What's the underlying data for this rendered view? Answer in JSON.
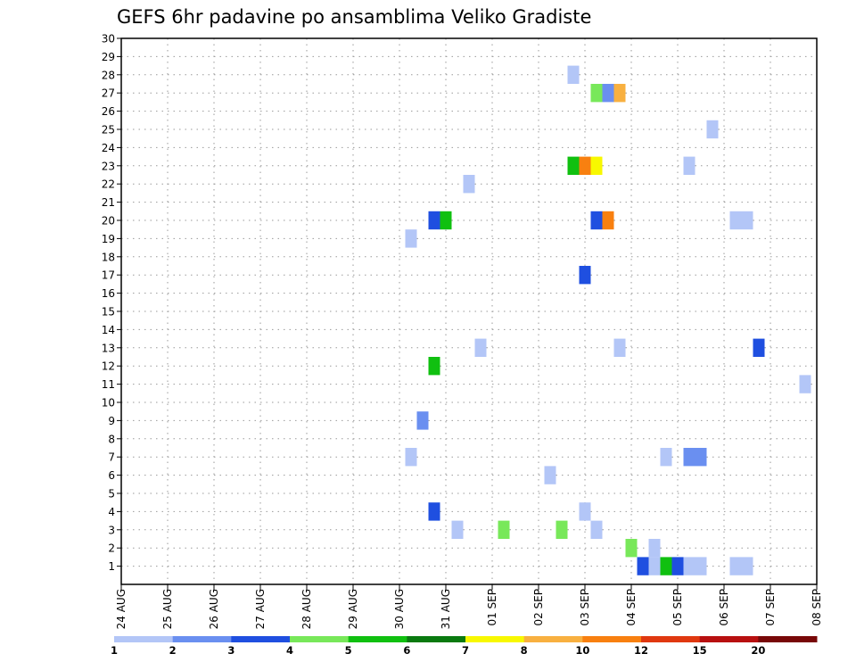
{
  "chart_data": {
    "type": "heatmap",
    "title": "GEFS 6hr padavine po ansamblima Veliko Gradiste",
    "xlabel": "",
    "ylabel": "",
    "x_tick_labels": [
      "24 AUG",
      "25 AUG",
      "26 AUG",
      "27 AUG",
      "28 AUG",
      "29 AUG",
      "30 AUG",
      "31 AUG",
      "01 SEP",
      "02 SEP",
      "03 SEP",
      "04 SEP",
      "05 SEP",
      "06 SEP",
      "07 SEP",
      "08 SEP"
    ],
    "y_tick_labels": [
      "1",
      "2",
      "3",
      "4",
      "5",
      "6",
      "7",
      "8",
      "9",
      "10",
      "11",
      "12",
      "13",
      "14",
      "15",
      "16",
      "17",
      "18",
      "19",
      "20",
      "21",
      "22",
      "23",
      "24",
      "25",
      "26",
      "27",
      "28",
      "29",
      "30"
    ],
    "xlim_days": [
      0,
      15
    ],
    "ylim": [
      0,
      30
    ],
    "grid": true,
    "x_step_hours": 6,
    "legend": {
      "placement": "bottom",
      "labels": [
        "1",
        "2",
        "3",
        "4",
        "5",
        "6",
        "7",
        "8",
        "10",
        "12",
        "15",
        "20"
      ],
      "colors": [
        "#b3c6f7",
        "#6a8ff0",
        "#1f4fe0",
        "#78e85a",
        "#10c010",
        "#0a7a10",
        "#f8f800",
        "#f8b040",
        "#f88010",
        "#e03810",
        "#b81010",
        "#780808"
      ]
    },
    "cells": [
      {
        "member": 28,
        "day": 9.75,
        "color": "#b3c6f7"
      },
      {
        "member": 27,
        "day": 10.25,
        "color": "#78e85a"
      },
      {
        "member": 27,
        "day": 10.5,
        "color": "#6a8ff0"
      },
      {
        "member": 27,
        "day": 10.75,
        "color": "#f8b040"
      },
      {
        "member": 25,
        "day": 12.75,
        "color": "#b3c6f7"
      },
      {
        "member": 23,
        "day": 9.75,
        "color": "#10c010"
      },
      {
        "member": 23,
        "day": 10.0,
        "color": "#f88010"
      },
      {
        "member": 23,
        "day": 10.25,
        "color": "#f8f800"
      },
      {
        "member": 23,
        "day": 12.25,
        "color": "#b3c6f7"
      },
      {
        "member": 22,
        "day": 7.5,
        "color": "#b3c6f7"
      },
      {
        "member": 20,
        "day": 6.75,
        "color": "#1f4fe0"
      },
      {
        "member": 20,
        "day": 7.0,
        "color": "#10c010"
      },
      {
        "member": 20,
        "day": 10.25,
        "color": "#1f4fe0"
      },
      {
        "member": 20,
        "day": 10.5,
        "color": "#f88010"
      },
      {
        "member": 20,
        "day": 13.25,
        "color": "#b3c6f7"
      },
      {
        "member": 20,
        "day": 13.5,
        "color": "#b3c6f7"
      },
      {
        "member": 19,
        "day": 6.25,
        "color": "#b3c6f7"
      },
      {
        "member": 17,
        "day": 10.0,
        "color": "#1f4fe0"
      },
      {
        "member": 13,
        "day": 7.75,
        "color": "#b3c6f7"
      },
      {
        "member": 13,
        "day": 10.75,
        "color": "#b3c6f7"
      },
      {
        "member": 13,
        "day": 13.75,
        "color": "#1f4fe0"
      },
      {
        "member": 12,
        "day": 6.75,
        "color": "#10c010"
      },
      {
        "member": 11,
        "day": 14.75,
        "color": "#b3c6f7"
      },
      {
        "member": 9,
        "day": 6.5,
        "color": "#6a8ff0"
      },
      {
        "member": 7,
        "day": 6.25,
        "color": "#b3c6f7"
      },
      {
        "member": 7,
        "day": 11.75,
        "color": "#b3c6f7"
      },
      {
        "member": 7,
        "day": 12.25,
        "color": "#6a8ff0"
      },
      {
        "member": 7,
        "day": 12.5,
        "color": "#6a8ff0"
      },
      {
        "member": 6,
        "day": 9.25,
        "color": "#b3c6f7"
      },
      {
        "member": 4,
        "day": 6.75,
        "color": "#1f4fe0"
      },
      {
        "member": 4,
        "day": 10.0,
        "color": "#b3c6f7"
      },
      {
        "member": 3,
        "day": 7.25,
        "color": "#b3c6f7"
      },
      {
        "member": 3,
        "day": 8.25,
        "color": "#78e85a"
      },
      {
        "member": 3,
        "day": 9.5,
        "color": "#78e85a"
      },
      {
        "member": 3,
        "day": 10.25,
        "color": "#b3c6f7"
      },
      {
        "member": 2,
        "day": 11.0,
        "color": "#78e85a"
      },
      {
        "member": 2,
        "day": 11.5,
        "color": "#b3c6f7"
      },
      {
        "member": 1,
        "day": 11.25,
        "color": "#1f4fe0"
      },
      {
        "member": 1,
        "day": 11.5,
        "color": "#b3c6f7"
      },
      {
        "member": 1,
        "day": 11.75,
        "color": "#10c010"
      },
      {
        "member": 1,
        "day": 12.0,
        "color": "#1f4fe0"
      },
      {
        "member": 1,
        "day": 12.25,
        "color": "#b3c6f7"
      },
      {
        "member": 1,
        "day": 12.5,
        "color": "#b3c6f7"
      },
      {
        "member": 1,
        "day": 13.25,
        "color": "#b3c6f7"
      },
      {
        "member": 1,
        "day": 13.5,
        "color": "#b3c6f7"
      }
    ]
  }
}
